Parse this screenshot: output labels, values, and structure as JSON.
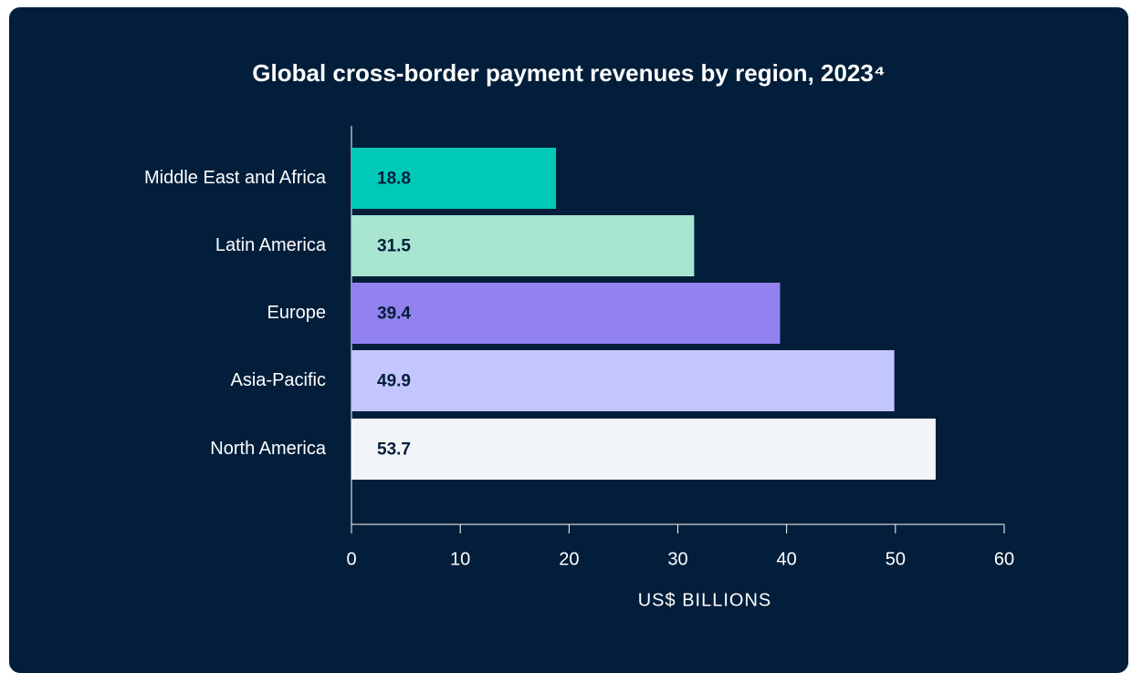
{
  "chart_data": {
    "type": "bar",
    "orientation": "horizontal",
    "title": "Global cross-border payment revenues by region, 2023⁴",
    "xlabel": "US$ BILLIONS",
    "categories": [
      "Middle East and Africa",
      "Latin America",
      "Europe",
      "Asia-Pacific",
      "North America"
    ],
    "values": [
      18.8,
      31.5,
      39.4,
      49.9,
      53.7
    ],
    "colors": [
      "#00c9b7",
      "#a8e6d2",
      "#9282ef",
      "#c4c6fe",
      "#f2f5f7"
    ],
    "xlim": [
      0,
      60
    ],
    "xticks": [
      0,
      10,
      20,
      30,
      40,
      50,
      60
    ],
    "grid": false
  }
}
